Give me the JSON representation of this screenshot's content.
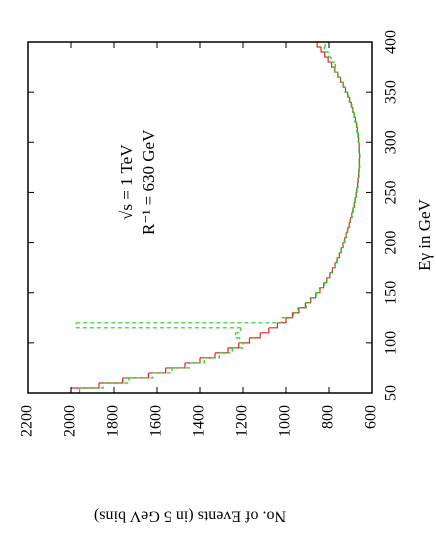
{
  "chart_data": {
    "type": "histogram",
    "xlabel": "Eγ in GeV",
    "ylabel": "No. of Events (in 5 GeV bins)",
    "annotations": [
      "√s = 1 TeV",
      "R⁻¹ = 630 GeV"
    ],
    "bins": [
      50,
      55,
      60,
      65,
      70,
      75,
      80,
      85,
      90,
      95,
      100,
      105,
      110,
      115,
      120,
      125,
      130,
      135,
      140,
      145,
      150,
      155,
      160,
      165,
      170,
      175,
      180,
      185,
      190,
      195,
      200,
      205,
      210,
      215,
      220,
      225,
      230,
      235,
      240,
      245,
      250,
      255,
      260,
      265,
      270,
      275,
      280,
      285,
      290,
      295,
      300,
      305,
      310,
      315,
      320,
      325,
      330,
      335,
      340,
      345,
      350,
      355,
      360,
      365,
      370,
      375,
      380,
      385,
      390,
      395,
      400
    ],
    "series": [
      {
        "color": "#e8242a",
        "style": "solid",
        "values": [
          2000,
          1870,
          1760,
          1640,
          1560,
          1470,
          1400,
          1330,
          1270,
          1220,
          1170,
          1120,
          1080,
          1040,
          1000,
          970,
          940,
          910,
          885,
          862,
          842,
          825,
          810,
          796,
          784,
          772,
          762,
          752,
          743,
          735,
          727,
          720,
          713,
          706,
          700,
          694,
          688,
          683,
          678,
          674,
          670,
          667,
          664,
          662,
          660,
          659,
          658,
          658,
          659,
          660,
          662,
          665,
          668,
          672,
          677,
          683,
          689,
          696,
          704,
          713,
          723,
          734,
          746,
          759,
          773,
          788,
          804,
          820,
          837,
          855
        ]
      },
      {
        "color": "#22cc22",
        "style": "dashed",
        "values": [
          1960,
          1850,
          1730,
          1620,
          1530,
          1450,
          1380,
          1310,
          1250,
          1200,
          1215,
          1235,
          1210,
          1975,
          1020,
          965,
          945,
          905,
          888,
          860,
          845,
          822,
          812,
          794,
          786,
          770,
          764,
          750,
          745,
          733,
          729,
          718,
          715,
          704,
          702,
          692,
          690,
          681,
          680,
          672,
          672,
          665,
          666,
          660,
          662,
          657,
          660,
          656,
          661,
          658,
          664,
          663,
          670,
          670,
          679,
          681,
          691,
          694,
          706,
          711,
          725,
          732,
          748,
          757,
          775,
          771,
          790,
          802,
          822,
          818
        ]
      }
    ],
    "xlim": [
      50,
      400
    ],
    "xticks": [
      50,
      100,
      150,
      200,
      250,
      300,
      350,
      400
    ],
    "ylim": [
      600,
      2200
    ],
    "yticks": [
      600,
      800,
      1000,
      1200,
      1400,
      1600,
      1800,
      2000,
      2200
    ]
  }
}
